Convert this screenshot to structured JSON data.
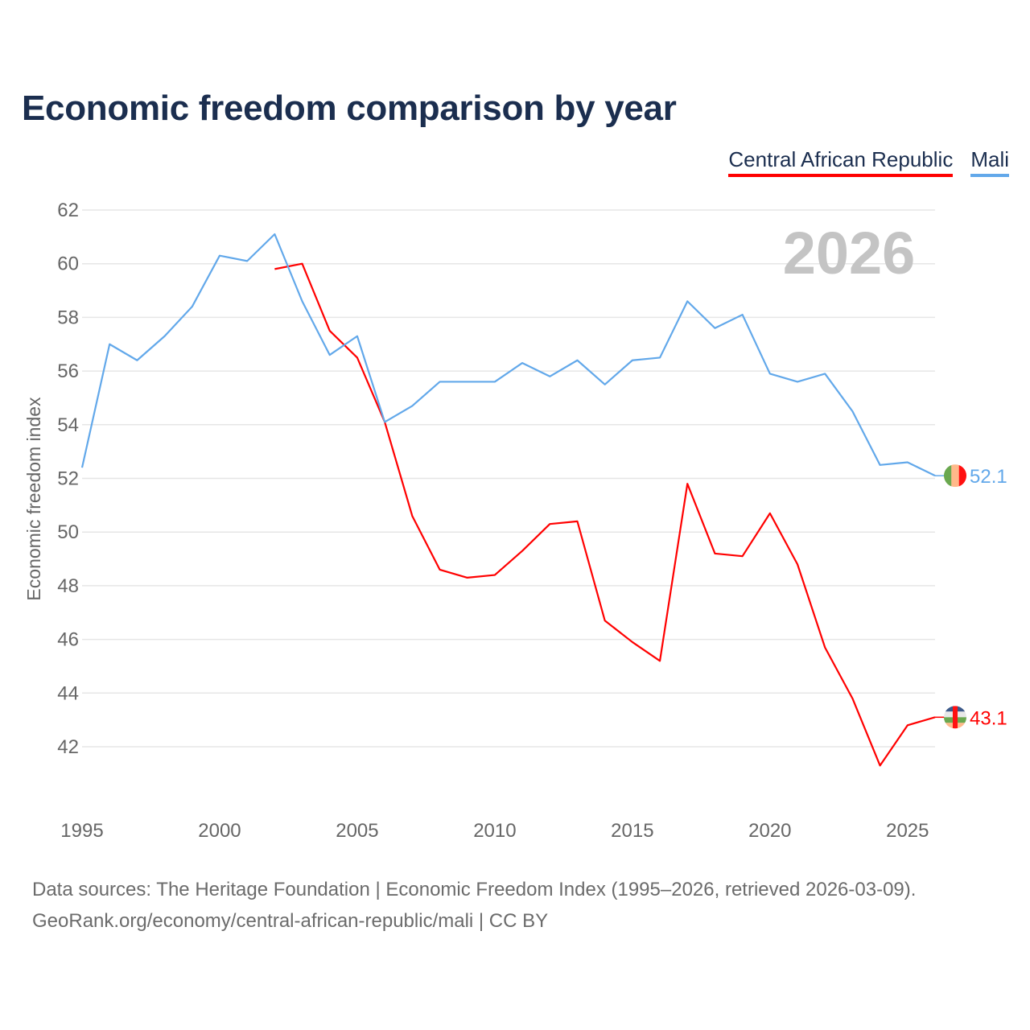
{
  "title": "Economic freedom comparison by year",
  "footer": {
    "line1": "Data sources: The Heritage Foundation | Economic Freedom Index (1995–2026, retrieved 2026-03-09).",
    "line2": "GeoRank.org/economy/central-african-republic/mali | CC BY"
  },
  "chart_data": {
    "type": "line",
    "title": "Economic freedom comparison by year",
    "xlabel": "",
    "ylabel": "Economic freedom index",
    "year_watermark": "2026",
    "xlim": [
      1995,
      2026
    ],
    "ylim": [
      40,
      62.4
    ],
    "xticks": [
      1995,
      2000,
      2005,
      2010,
      2015,
      2020,
      2025
    ],
    "yticks": [
      42,
      44,
      46,
      48,
      50,
      52,
      54,
      56,
      58,
      60,
      62
    ],
    "grid": true,
    "legend_position": "top-right",
    "series": [
      {
        "name": "Central African Republic",
        "color": "#ff0000",
        "end_label": "43.1",
        "flag_icon": "central-african-republic-flag-icon",
        "x": [
          2002,
          2003,
          2004,
          2005,
          2006,
          2007,
          2008,
          2009,
          2010,
          2011,
          2012,
          2013,
          2014,
          2015,
          2016,
          2017,
          2018,
          2019,
          2020,
          2021,
          2022,
          2023,
          2024,
          2025,
          2026
        ],
        "values": [
          59.8,
          60.0,
          57.5,
          56.5,
          54.1,
          50.6,
          48.6,
          48.3,
          48.4,
          49.3,
          50.3,
          50.4,
          46.7,
          45.9,
          45.2,
          51.8,
          49.2,
          49.1,
          50.7,
          48.8,
          45.7,
          43.8,
          41.3,
          42.8,
          43.1
        ]
      },
      {
        "name": "Mali",
        "color": "#62a8ea",
        "end_label": "52.1",
        "flag_icon": "mali-flag-icon",
        "x": [
          1995,
          1996,
          1997,
          1998,
          1999,
          2000,
          2001,
          2002,
          2003,
          2004,
          2005,
          2006,
          2007,
          2008,
          2009,
          2010,
          2011,
          2012,
          2013,
          2014,
          2015,
          2016,
          2017,
          2018,
          2019,
          2020,
          2021,
          2022,
          2023,
          2024,
          2025,
          2026
        ],
        "values": [
          52.4,
          57.0,
          56.4,
          57.3,
          58.4,
          60.3,
          60.1,
          61.1,
          58.6,
          56.6,
          57.3,
          54.1,
          54.7,
          55.6,
          55.6,
          55.6,
          56.3,
          55.8,
          56.4,
          55.5,
          56.4,
          56.5,
          58.6,
          57.6,
          58.1,
          55.9,
          55.6,
          55.9,
          54.5,
          52.5,
          52.6,
          52.1
        ]
      }
    ]
  }
}
